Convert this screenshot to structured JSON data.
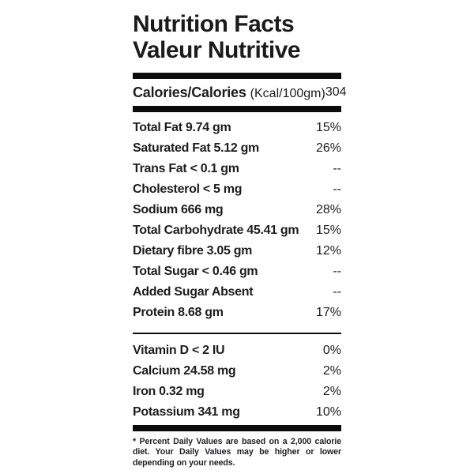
{
  "label": {
    "title_line1": "Nutrition Facts",
    "title_line2": "Valeur Nutritive",
    "calories": {
      "name": "Calories/Calories",
      "unit": "(Kcal/100gm)",
      "value": "304"
    },
    "nutrients": [
      {
        "label": "Total Fat 9.74 gm",
        "dv": "15%"
      },
      {
        "label": "Saturated Fat 5.12 gm",
        "dv": "26%"
      },
      {
        "label": "Trans Fat < 0.1 gm",
        "dv": "--"
      },
      {
        "label": "Cholesterol < 5 mg",
        "dv": "--"
      },
      {
        "label": "Sodium 666 mg",
        "dv": "28%"
      },
      {
        "label": "Total Carbohydrate 45.41 gm",
        "dv": "15%"
      },
      {
        "label": "Dietary fibre 3.05 gm",
        "dv": "12%"
      },
      {
        "label": "Total Sugar < 0.46 gm",
        "dv": "--"
      },
      {
        "label": "Added Sugar Absent",
        "dv": "--"
      },
      {
        "label": "Protein 8.68 gm",
        "dv": "17%"
      }
    ],
    "micronutrients": [
      {
        "label": "Vitamin D < 2 IU",
        "dv": "0%"
      },
      {
        "label": "Calcium 24.58 mg",
        "dv": "2%"
      },
      {
        "label": "Iron 0.32 mg",
        "dv": "2%"
      },
      {
        "label": "Potassium 341 mg",
        "dv": "10%"
      }
    ],
    "footnote": "* Percent Daily Values are based on a 2,000 calorie diet. Your Daily Values may be higher or lower depending on your needs.",
    "colors": {
      "text": "#1d1d1f",
      "bar": "#0c0c0c"
    }
  }
}
